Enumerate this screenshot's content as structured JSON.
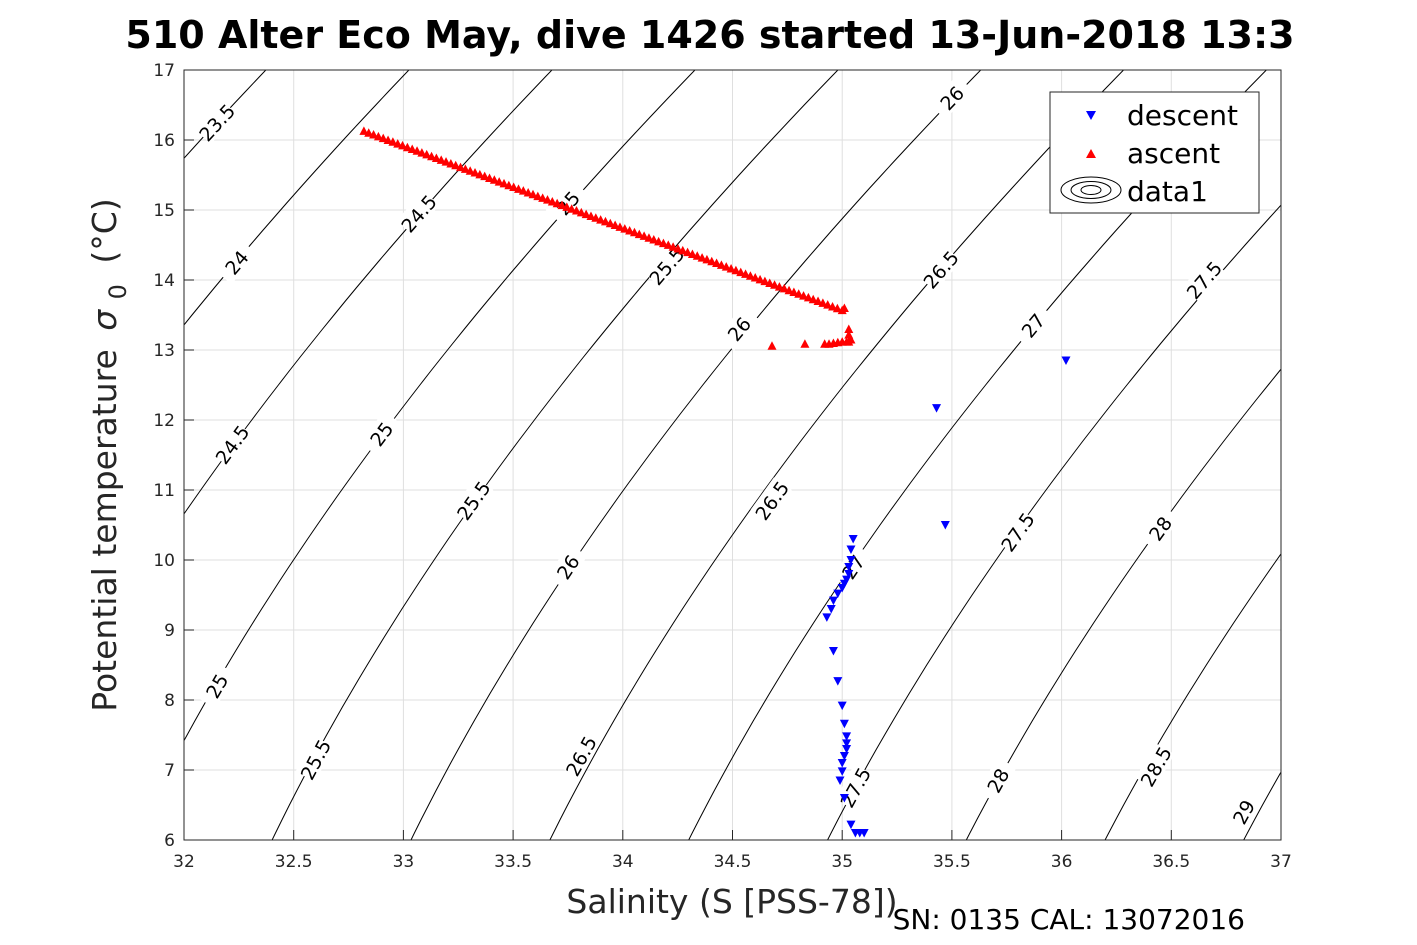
{
  "chart_data": {
    "type": "scatter",
    "title": "510 Alter Eco May, dive 1426 started 13-Jun-2018 13:3",
    "xlabel": "Salinity (S [PSS-78])",
    "ylabel_main": "Potential temperature",
    "ylabel_symbol": "σ",
    "ylabel_sub": "0",
    "ylabel_unit": "(°C)",
    "xlim": [
      32,
      37
    ],
    "ylim": [
      6,
      17
    ],
    "xticks": [
      32,
      32.5,
      33,
      33.5,
      34,
      34.5,
      35,
      35.5,
      36,
      36.5,
      37
    ],
    "yticks": [
      6,
      7,
      8,
      9,
      10,
      11,
      12,
      13,
      14,
      15,
      16,
      17
    ],
    "grid": true,
    "legend_position": "top-right",
    "legend": [
      {
        "label": "descent",
        "marker": "triangle-down",
        "color": "#0000ff"
      },
      {
        "label": "ascent",
        "marker": "triangle-up",
        "color": "#ff0000"
      },
      {
        "label": "data1",
        "marker": "contour",
        "color": "#000000"
      }
    ],
    "contours": {
      "levels": [
        23.5,
        24,
        24.5,
        25,
        25.5,
        26,
        26.5,
        27,
        27.5,
        28,
        28.5,
        29
      ],
      "labels": [
        {
          "text": "23.5",
          "x": 32.15,
          "y": 16.25
        },
        {
          "text": "24",
          "x": 32.24,
          "y": 14.25
        },
        {
          "text": "24.5",
          "x": 32.22,
          "y": 11.65
        },
        {
          "text": "25",
          "x": 32.15,
          "y": 8.2
        },
        {
          "text": "24.5",
          "x": 33.07,
          "y": 14.95
        },
        {
          "text": "25",
          "x": 32.9,
          "y": 11.8
        },
        {
          "text": "25.5",
          "x": 32.6,
          "y": 7.15
        },
        {
          "text": "25",
          "x": 33.75,
          "y": 15.1
        },
        {
          "text": "25.5",
          "x": 33.32,
          "y": 10.85
        },
        {
          "text": "26",
          "x": 33.75,
          "y": 9.9
        },
        {
          "text": "26.5",
          "x": 33.81,
          "y": 7.2
        },
        {
          "text": "25.5",
          "x": 34.2,
          "y": 14.2
        },
        {
          "text": "26",
          "x": 34.53,
          "y": 13.3
        },
        {
          "text": "26.5",
          "x": 34.68,
          "y": 10.85
        },
        {
          "text": "27",
          "x": 35.05,
          "y": 9.9
        },
        {
          "text": "27.5",
          "x": 35.06,
          "y": 6.75
        },
        {
          "text": "26",
          "x": 35.5,
          "y": 16.6
        },
        {
          "text": "26.5",
          "x": 35.45,
          "y": 14.15
        },
        {
          "text": "27",
          "x": 35.87,
          "y": 13.35
        },
        {
          "text": "27.5",
          "x": 35.8,
          "y": 10.4
        },
        {
          "text": "28",
          "x": 35.71,
          "y": 6.85
        },
        {
          "text": "27.5",
          "x": 36.65,
          "y": 14.0
        },
        {
          "text": "28",
          "x": 36.45,
          "y": 10.45
        },
        {
          "text": "28.5",
          "x": 36.43,
          "y": 7.05
        },
        {
          "text": "29",
          "x": 36.83,
          "y": 6.4
        }
      ]
    },
    "series": [
      {
        "name": "descent",
        "marker": "triangle-down",
        "color": "#0000ff",
        "points": [
          [
            36.02,
            12.85
          ],
          [
            35.43,
            12.17
          ],
          [
            35.47,
            10.5
          ],
          [
            35.05,
            10.3
          ],
          [
            35.04,
            10.15
          ],
          [
            35.04,
            10.0
          ],
          [
            35.03,
            9.9
          ],
          [
            35.03,
            9.8
          ],
          [
            35.02,
            9.72
          ],
          [
            35.01,
            9.66
          ],
          [
            35.0,
            9.6
          ],
          [
            34.98,
            9.52
          ],
          [
            34.96,
            9.42
          ],
          [
            34.95,
            9.3
          ],
          [
            34.93,
            9.18
          ],
          [
            34.96,
            8.7
          ],
          [
            34.98,
            8.27
          ],
          [
            35.0,
            7.92
          ],
          [
            35.01,
            7.66
          ],
          [
            35.02,
            7.48
          ],
          [
            35.02,
            7.38
          ],
          [
            35.02,
            7.3
          ],
          [
            35.01,
            7.2
          ],
          [
            35.0,
            7.1
          ],
          [
            35.0,
            6.98
          ],
          [
            34.99,
            6.85
          ],
          [
            35.01,
            6.6
          ],
          [
            35.04,
            6.22
          ],
          [
            35.06,
            6.1
          ],
          [
            35.08,
            6.1
          ],
          [
            35.1,
            6.1
          ]
        ]
      },
      {
        "name": "ascent",
        "marker": "triangle-up",
        "color": "#ff0000",
        "start": [
          32.82,
          16.13
        ],
        "end": [
          35.0,
          13.57
        ],
        "count": 100,
        "extra_points": [
          [
            35.01,
            13.6
          ],
          [
            35.03,
            13.3
          ],
          [
            35.03,
            13.22
          ],
          [
            35.04,
            13.15
          ],
          [
            35.03,
            13.12
          ],
          [
            35.02,
            13.12
          ],
          [
            35.0,
            13.12
          ],
          [
            34.98,
            13.11
          ],
          [
            34.96,
            13.1
          ],
          [
            34.94,
            13.09
          ],
          [
            34.92,
            13.09
          ],
          [
            34.83,
            13.09
          ],
          [
            34.68,
            13.06
          ]
        ]
      }
    ],
    "footer": "SN: 0135  CAL: 13072016"
  }
}
